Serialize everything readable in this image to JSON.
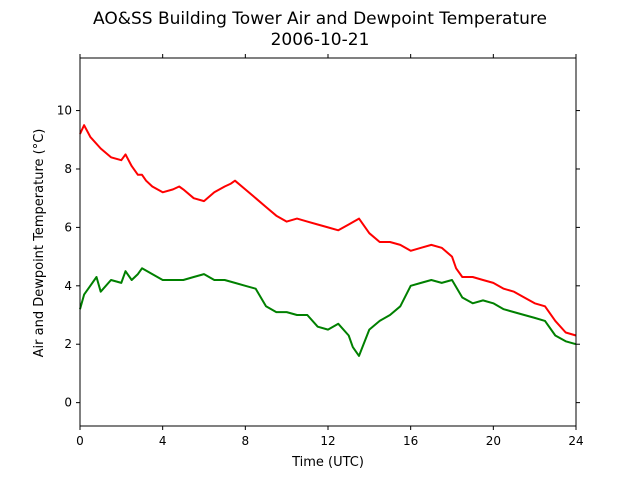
{
  "chart_data": {
    "type": "line",
    "title": "AO&SS Building Tower Air and Dewpoint Temperature",
    "subtitle": "2006-10-21",
    "xlabel": "Time (UTC)",
    "ylabel": "Air and Dewpoint Temperature (°C)",
    "xlim": [
      0,
      24
    ],
    "ylim": [
      -0.8,
      11.8
    ],
    "xticks": [
      0,
      4,
      8,
      12,
      16,
      20,
      24
    ],
    "yticks": [
      0,
      2,
      4,
      6,
      8,
      10
    ],
    "grid": false,
    "series": [
      {
        "color": "#ff0000",
        "x": [
          0,
          0.2,
          0.5,
          1.0,
          1.5,
          2.0,
          2.2,
          2.5,
          2.8,
          3.0,
          3.2,
          3.5,
          4.0,
          4.5,
          4.8,
          5.0,
          5.5,
          6.0,
          6.5,
          7.0,
          7.3,
          7.5,
          8.0,
          8.5,
          9.0,
          9.5,
          10.0,
          10.5,
          11.0,
          11.5,
          12.0,
          12.5,
          13.0,
          13.5,
          14.0,
          14.5,
          15.0,
          15.5,
          16.0,
          16.5,
          17.0,
          17.5,
          18.0,
          18.2,
          18.5,
          19.0,
          19.5,
          20.0,
          20.5,
          21.0,
          21.5,
          22.0,
          22.5,
          23.0,
          23.5,
          24.0
        ],
        "y": [
          9.2,
          9.5,
          9.1,
          8.7,
          8.4,
          8.3,
          8.5,
          8.1,
          7.8,
          7.8,
          7.6,
          7.4,
          7.2,
          7.3,
          7.4,
          7.3,
          7.0,
          6.9,
          7.2,
          7.4,
          7.5,
          7.6,
          7.3,
          7.0,
          6.7,
          6.4,
          6.2,
          6.3,
          6.2,
          6.1,
          6.0,
          5.9,
          6.1,
          6.3,
          5.8,
          5.5,
          5.5,
          5.4,
          5.2,
          5.3,
          5.4,
          5.3,
          5.0,
          4.6,
          4.3,
          4.3,
          4.2,
          4.1,
          3.9,
          3.8,
          3.6,
          3.4,
          3.3,
          2.8,
          2.4,
          2.3
        ]
      },
      {
        "color": "#008000",
        "x": [
          0,
          0.2,
          0.5,
          0.8,
          1.0,
          1.5,
          2.0,
          2.2,
          2.5,
          2.8,
          3.0,
          3.5,
          4.0,
          4.5,
          5.0,
          5.5,
          6.0,
          6.5,
          7.0,
          7.5,
          8.0,
          8.5,
          9.0,
          9.5,
          10.0,
          10.5,
          11.0,
          11.5,
          12.0,
          12.5,
          13.0,
          13.2,
          13.5,
          14.0,
          14.5,
          15.0,
          15.5,
          16.0,
          16.5,
          17.0,
          17.5,
          18.0,
          18.5,
          19.0,
          19.5,
          20.0,
          20.5,
          21.0,
          21.5,
          22.0,
          22.5,
          23.0,
          23.5,
          24.0
        ],
        "y": [
          3.2,
          3.7,
          4.0,
          4.3,
          3.8,
          4.2,
          4.1,
          4.5,
          4.2,
          4.4,
          4.6,
          4.4,
          4.2,
          4.2,
          4.2,
          4.3,
          4.4,
          4.2,
          4.2,
          4.1,
          4.0,
          3.9,
          3.3,
          3.1,
          3.1,
          3.0,
          3.0,
          2.6,
          2.5,
          2.7,
          2.3,
          1.9,
          1.6,
          2.5,
          2.8,
          3.0,
          3.3,
          4.0,
          4.1,
          4.2,
          4.1,
          4.2,
          3.6,
          3.4,
          3.5,
          3.4,
          3.2,
          3.1,
          3.0,
          2.9,
          2.8,
          2.3,
          2.1,
          2.0
        ]
      }
    ]
  }
}
